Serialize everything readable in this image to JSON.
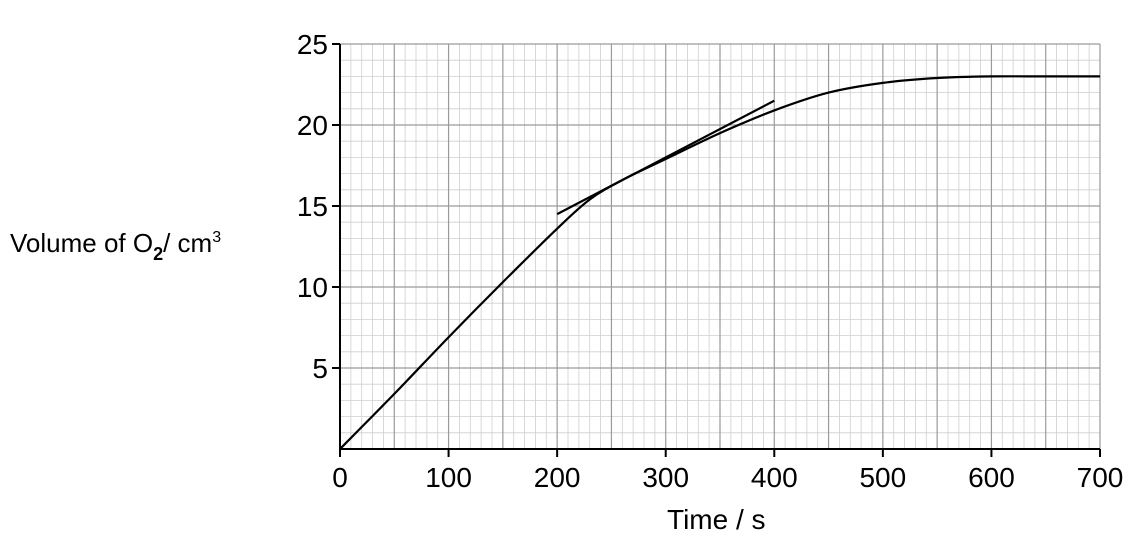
{
  "chart_data": {
    "type": "line",
    "xlabel": "Time / s",
    "ylabel": {
      "main": "Volume of O",
      "subscript": "2",
      "units": "/ cm",
      "superscript": "3"
    },
    "xlim": [
      0,
      700
    ],
    "ylim": [
      0,
      25
    ],
    "x_ticks": [
      0,
      100,
      200,
      300,
      400,
      500,
      600,
      700
    ],
    "y_ticks": [
      5,
      10,
      15,
      20,
      25
    ],
    "grid": true,
    "x_minor_step": 10,
    "y_minor_step": 1,
    "series": [
      {
        "x": [
          0,
          50,
          100,
          150,
          200,
          230,
          260,
          300,
          350,
          400,
          450,
          500,
          550,
          600,
          650,
          700
        ],
        "y": [
          0,
          3.4,
          6.9,
          10.3,
          13.6,
          15.4,
          16.6,
          17.9,
          19.5,
          20.9,
          22.0,
          22.6,
          22.9,
          23.0,
          23.0,
          23.0
        ]
      }
    ],
    "tangent": {
      "x": [
        200,
        400
      ],
      "y": [
        14.5,
        21.5
      ]
    }
  }
}
